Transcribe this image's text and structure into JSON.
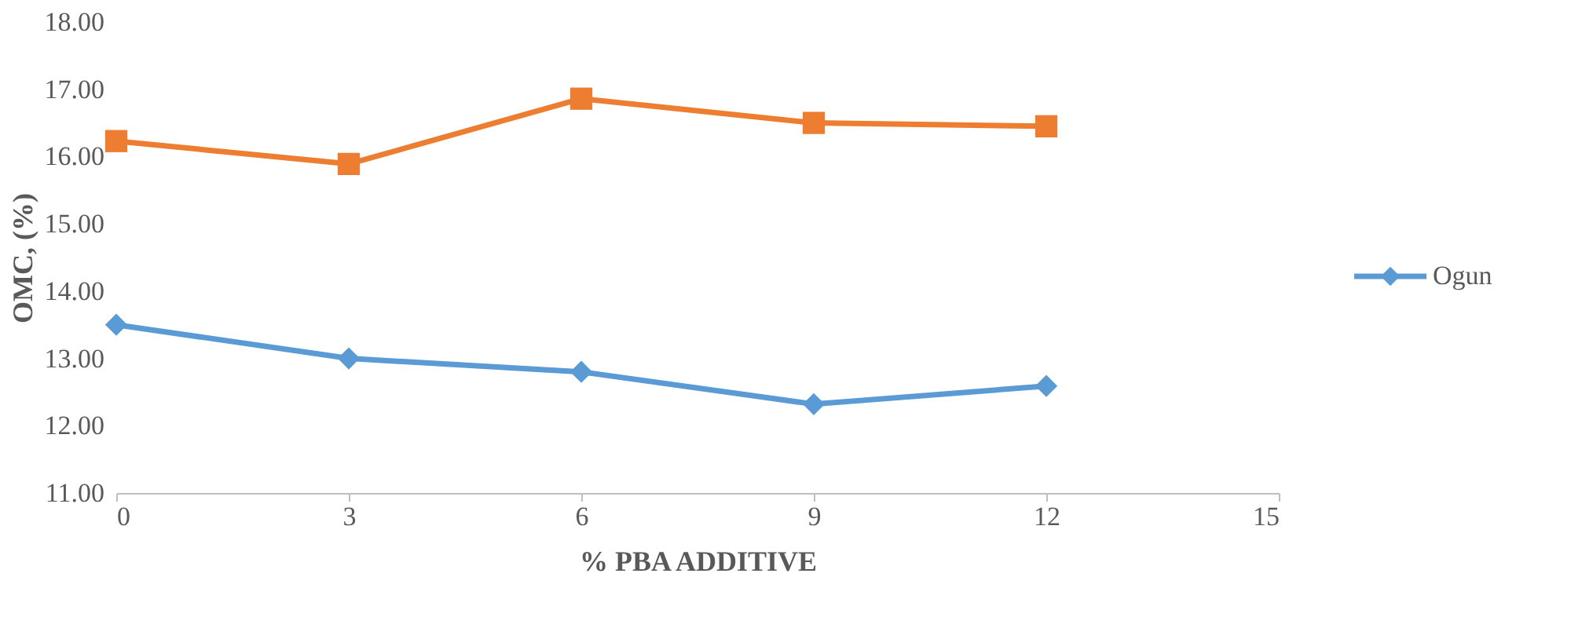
{
  "chart_data": {
    "type": "line",
    "xlabel": "% PBA ADDITIVE",
    "ylabel": "OMC, (%)",
    "x": [
      0,
      3,
      6,
      9,
      12
    ],
    "series": [
      {
        "color": "#ed7d31",
        "marker": "square",
        "values": [
          16.23,
          15.89,
          16.86,
          16.5,
          16.45
        ]
      },
      {
        "name": "Ogun",
        "color": "#5b9bd5",
        "marker": "diamond",
        "values": [
          13.5,
          13.0,
          12.8,
          12.32,
          12.59
        ]
      }
    ],
    "xlim": [
      0,
      15
    ],
    "xticks": [
      0,
      3,
      6,
      9,
      12,
      15
    ],
    "ylim": [
      11,
      18
    ],
    "yticks": [
      {
        "value": 11,
        "label": "11.00"
      },
      {
        "value": 12,
        "label": "12.00"
      },
      {
        "value": 13,
        "label": "13.00"
      },
      {
        "value": 14,
        "label": "14.00"
      },
      {
        "value": 15,
        "label": "15.00"
      },
      {
        "value": 16,
        "label": "16.00"
      },
      {
        "value": 17,
        "label": "17.00"
      },
      {
        "value": 18,
        "label": "18.00"
      }
    ],
    "grid": false,
    "legend": "right",
    "line_style": "solid"
  }
}
